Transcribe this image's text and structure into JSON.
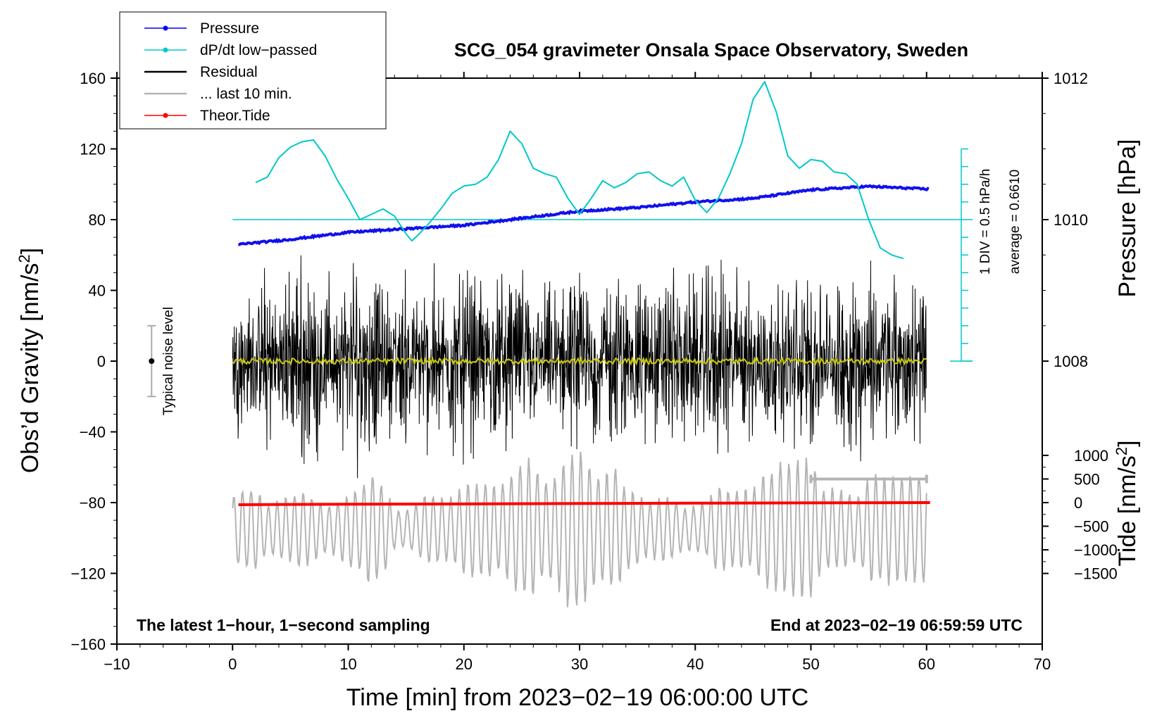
{
  "chart_data": {
    "type": "line",
    "title": "SCG_054 gravimeter Onsala Space Observatory, Sweden",
    "xlabel": "Time [min] from 2023−02−19 06:00:00 UTC",
    "x_ticks": [
      -10,
      0,
      10,
      20,
      30,
      40,
      50,
      60,
      70
    ],
    "x_tick_labels": [
      "−10",
      "0",
      "10",
      "20",
      "30",
      "40",
      "50",
      "60",
      "70"
    ],
    "xlim": [
      -10,
      70
    ],
    "left_axis": {
      "label": "Obs’d Gravity [nm/s",
      "label_sup": "2",
      "label_end": "]",
      "ylim": [
        -160,
        160
      ],
      "ticks": [
        160,
        120,
        80,
        40,
        0,
        -40,
        -80,
        -120,
        -160
      ],
      "tick_labels": [
        "160",
        "120",
        "80",
        "40",
        "0",
        "−40",
        "−80",
        "−120",
        "−160"
      ]
    },
    "pressure_axis": {
      "label": "Pressure [hPa]",
      "ticks": [
        1012,
        1010,
        1008
      ],
      "tick_labels": [
        "1012",
        "1010",
        "1008"
      ],
      "gravity_per_hpa": 40,
      "ref_hpa": 1010,
      "ref_gravity": 80
    },
    "tide_axis": {
      "label": "Tide [nm/s",
      "label_sup": "2",
      "label_end": "]",
      "ticks": [
        1000,
        500,
        0,
        -500,
        -1000,
        -1500
      ],
      "tick_labels": [
        "1000",
        "500",
        "0",
        "−500",
        "−1000",
        "−1500"
      ],
      "gravity_per_unit": 0.0267,
      "ref_tide": 0,
      "ref_gravity": -80
    },
    "dpdt_scale": {
      "label_div": "1 DIV = 0.5 hPa/h",
      "label_avg": "average = 0.6610",
      "zero_gravity": 80,
      "gravity_per_div": 10,
      "divisions": 16,
      "x_position": 63
    },
    "noise_level": {
      "label": "Typical noise level",
      "x": -7,
      "center": 0,
      "half_range": 20
    },
    "last10_marker": {
      "x_start": 50,
      "x_end": 60,
      "tide_value": 500
    },
    "legend": [
      {
        "label": "Pressure",
        "color": "#0000ff",
        "marker": true
      },
      {
        "label": "dP/dt low−passed",
        "color": "#00c8c8",
        "marker": true
      },
      {
        "label": "Residual",
        "color": "#000000",
        "marker": false
      },
      {
        "label": "... last 10 min.",
        "color": "#b4b4b4",
        "marker": false
      },
      {
        "label": "Theor.Tide",
        "color": "#ff0000",
        "marker": true
      }
    ],
    "series": [
      {
        "name": "Pressure",
        "color": "#1010ee",
        "units": "hPa",
        "x": [
          0.5,
          5,
          10,
          15,
          20,
          25,
          30,
          35,
          40,
          45,
          50,
          55,
          60.3
        ],
        "values": [
          1009.65,
          1009.72,
          1009.82,
          1009.87,
          1009.92,
          1010.02,
          1010.12,
          1010.17,
          1010.25,
          1010.3,
          1010.42,
          1010.47,
          1010.43
        ]
      },
      {
        "name": "dP/dt low-passed",
        "color": "#00c8c8",
        "units": "nm/s2 plot scale",
        "x": [
          2,
          3,
          4,
          5,
          6,
          7,
          8,
          9,
          10,
          11,
          12,
          13,
          14,
          15,
          15.5,
          16,
          17,
          18,
          19,
          20,
          21,
          22,
          23,
          24,
          25,
          26,
          27,
          28,
          29,
          30,
          31,
          32,
          33,
          34,
          35,
          36,
          37,
          38,
          39,
          40,
          41,
          42,
          43,
          44,
          45,
          46,
          47,
          48,
          49,
          50,
          51,
          52,
          53,
          54,
          55,
          56,
          57,
          58
        ],
        "values": [
          101,
          104,
          115,
          121,
          124,
          125,
          116,
          103,
          92,
          80,
          83,
          86,
          82,
          72,
          68,
          71,
          78,
          86,
          95,
          99,
          100,
          104,
          114,
          130,
          123,
          109,
          106,
          104,
          92,
          83,
          92,
          102,
          98,
          101,
          106,
          107,
          102,
          99,
          104,
          91,
          84,
          92,
          106,
          123,
          148,
          158,
          141,
          116,
          109,
          114,
          113,
          107,
          106,
          100,
          80,
          64,
          60,
          58
        ]
      },
      {
        "name": "Residual",
        "color": "#000000",
        "x_range": [
          0,
          60
        ],
        "amplitude_envelope": [
          33,
          38,
          33,
          52,
          37,
          53,
          56,
          52,
          45,
          36,
          55,
          64,
          51,
          42,
          37,
          52,
          33,
          52,
          42,
          53,
          50,
          47,
          42,
          55,
          47,
          50,
          38,
          41,
          46,
          45,
          45,
          47,
          43,
          51,
          43,
          47,
          46,
          40,
          54,
          44,
          44,
          47,
          51,
          56,
          48,
          42,
          52,
          36,
          46,
          48,
          50,
          42,
          42,
          45,
          53,
          52,
          48,
          48,
          46,
          52,
          60
        ],
        "smoothed_mean": 0
      },
      {
        "name": "... last 10 min.",
        "color": "#b4b4b4",
        "x_range": [
          0,
          60
        ],
        "amplitude_envelope": [
          20,
          24,
          25,
          14,
          18,
          20,
          23,
          19,
          14,
          16,
          22,
          25,
          34,
          28,
          11,
          11,
          16,
          22,
          19,
          19,
          26,
          29,
          30,
          24,
          31,
          43,
          39,
          28,
          33,
          48,
          48,
          38,
          30,
          39,
          24,
          21,
          16,
          20,
          18,
          13,
          14,
          16,
          27,
          23,
          23,
          24,
          35,
          37,
          40,
          40,
          41,
          24,
          24,
          23,
          19,
          30,
          33,
          33,
          33,
          33,
          35
        ],
        "center": -95
      },
      {
        "name": "Theor.Tide",
        "color": "#ff0000",
        "units": "nm/s2",
        "x": [
          0.5,
          10,
          20,
          30,
          40,
          50,
          60.3
        ],
        "values": [
          -45,
          -35,
          -28,
          -20,
          -12,
          -6,
          0
        ]
      }
    ]
  },
  "footer": {
    "left": "The latest 1−hour, 1−second sampling",
    "right": "End at 2023−02−19 06:59:59 UTC"
  }
}
